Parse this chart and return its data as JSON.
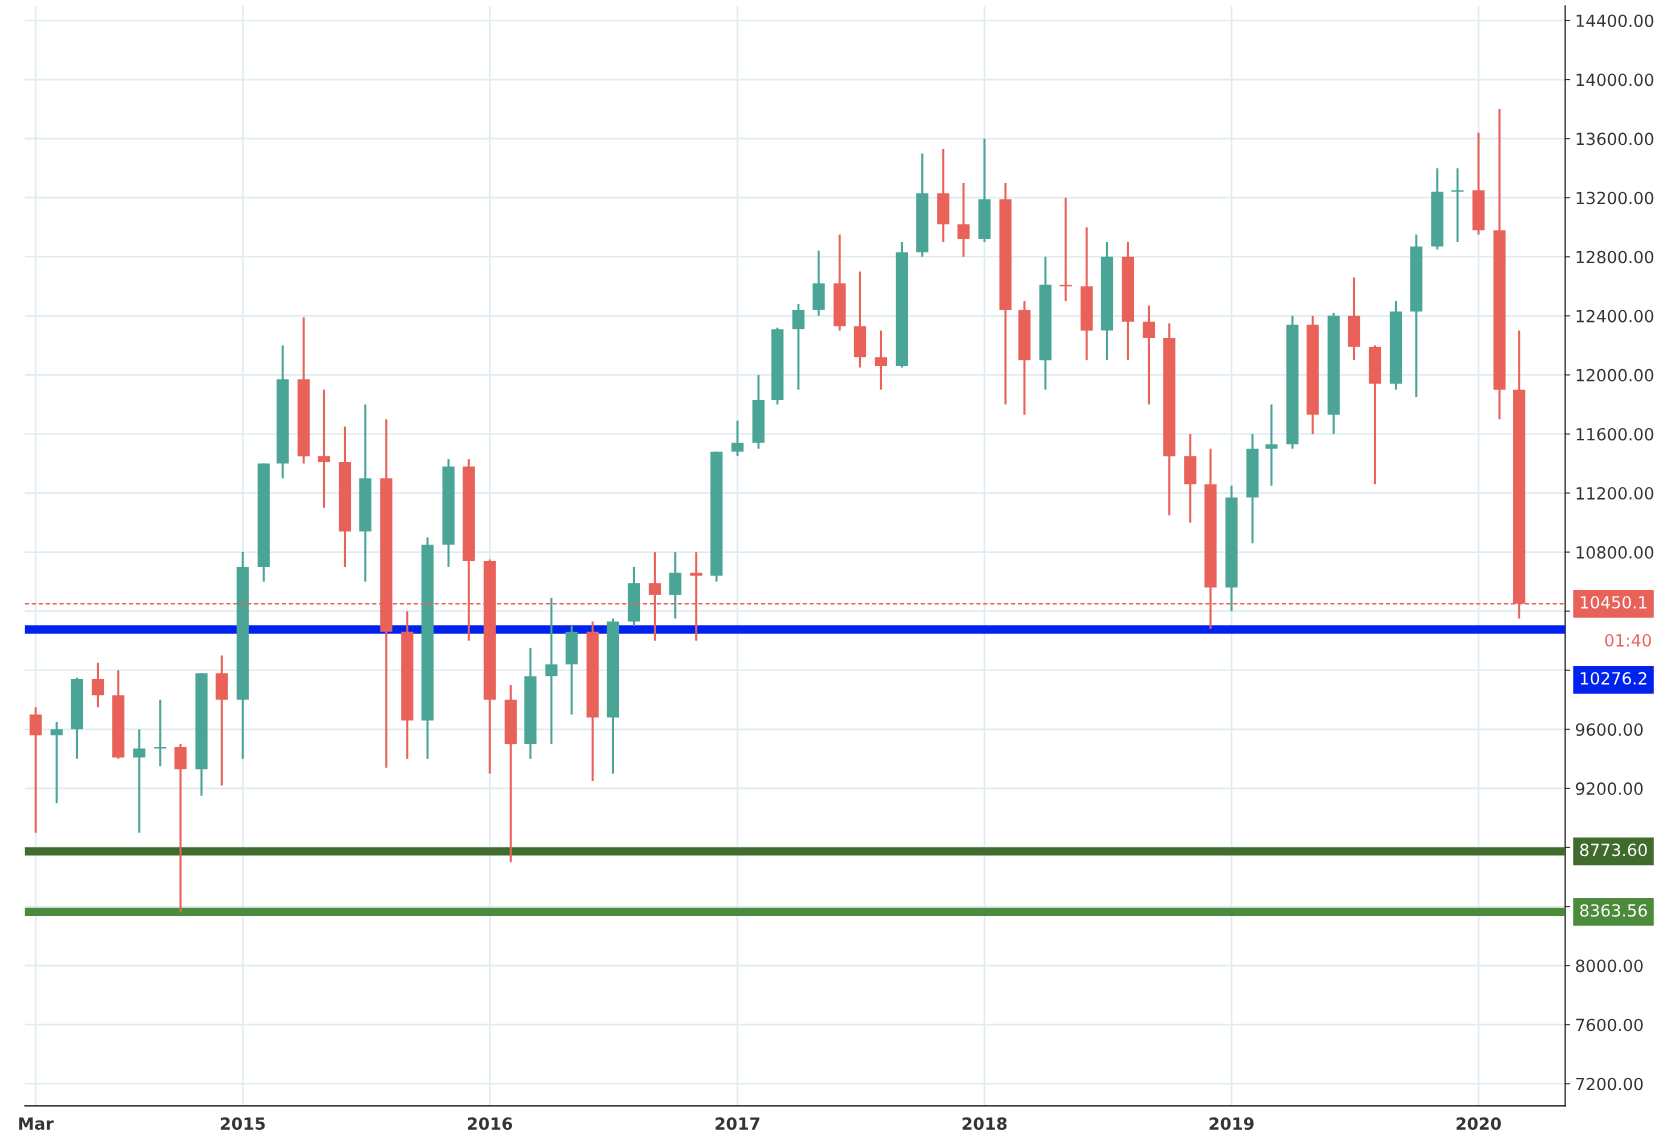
{
  "chart_data": {
    "type": "candlestick",
    "x": [
      "2014-03",
      "2014-04",
      "2014-05",
      "2014-06",
      "2014-07",
      "2014-08",
      "2014-09",
      "2014-10",
      "2014-11",
      "2014-12",
      "2015-01",
      "2015-02",
      "2015-03",
      "2015-04",
      "2015-05",
      "2015-06",
      "2015-07",
      "2015-08",
      "2015-09",
      "2015-10",
      "2015-11",
      "2015-12",
      "2016-01",
      "2016-02",
      "2016-03",
      "2016-04",
      "2016-05",
      "2016-06",
      "2016-07",
      "2016-08",
      "2016-09",
      "2016-10",
      "2016-11",
      "2016-12",
      "2017-01",
      "2017-02",
      "2017-03",
      "2017-04",
      "2017-05",
      "2017-06",
      "2017-07",
      "2017-08",
      "2017-09",
      "2017-10",
      "2017-11",
      "2017-12",
      "2018-01",
      "2018-02",
      "2018-03",
      "2018-04",
      "2018-05",
      "2018-06",
      "2018-07",
      "2018-08",
      "2018-09",
      "2018-10",
      "2018-11",
      "2018-12",
      "2019-01",
      "2019-02",
      "2019-03",
      "2019-04",
      "2019-05",
      "2019-06",
      "2019-07",
      "2019-08",
      "2019-09",
      "2019-10",
      "2019-11",
      "2019-12",
      "2020-01",
      "2020-02",
      "2020-03"
    ],
    "ohlc": [
      [
        9700,
        9750,
        8900,
        9560
      ],
      [
        9560,
        9650,
        9100,
        9600
      ],
      [
        9600,
        9950,
        9400,
        9940
      ],
      [
        9940,
        10050,
        9750,
        9830
      ],
      [
        9830,
        10000,
        9400,
        9410
      ],
      [
        9410,
        9600,
        8900,
        9470
      ],
      [
        9470,
        9800,
        9350,
        9480
      ],
      [
        9480,
        9500,
        8360,
        9330
      ],
      [
        9330,
        9980,
        9150,
        9980
      ],
      [
        9980,
        10100,
        9220,
        9800
      ],
      [
        9800,
        10800,
        9400,
        10700
      ],
      [
        10700,
        11400,
        10600,
        11400
      ],
      [
        11400,
        12200,
        11300,
        11970
      ],
      [
        11970,
        12390,
        11400,
        11450
      ],
      [
        11450,
        11900,
        11100,
        11410
      ],
      [
        11410,
        11650,
        10700,
        10940
      ],
      [
        10940,
        11800,
        10600,
        11300
      ],
      [
        11300,
        11700,
        9340,
        10260
      ],
      [
        10260,
        10400,
        9400,
        9660
      ],
      [
        9660,
        10900,
        9400,
        10850
      ],
      [
        10850,
        11430,
        10700,
        11380
      ],
      [
        11380,
        11430,
        10200,
        10740
      ],
      [
        10740,
        10750,
        9300,
        9800
      ],
      [
        9800,
        9900,
        8700,
        9500
      ],
      [
        9500,
        10150,
        9400,
        9960
      ],
      [
        9960,
        10490,
        9500,
        10040
      ],
      [
        10040,
        10300,
        9700,
        10260
      ],
      [
        10260,
        10330,
        9250,
        9680
      ],
      [
        9680,
        10350,
        9300,
        10330
      ],
      [
        10330,
        10700,
        10300,
        10590
      ],
      [
        10590,
        10800,
        10200,
        10510
      ],
      [
        10510,
        10800,
        10350,
        10660
      ],
      [
        10660,
        10800,
        10200,
        10640
      ],
      [
        10640,
        11480,
        10600,
        11480
      ],
      [
        11480,
        11690,
        11450,
        11540
      ],
      [
        11540,
        12000,
        11500,
        11830
      ],
      [
        11830,
        12320,
        11800,
        12310
      ],
      [
        12310,
        12480,
        11900,
        12440
      ],
      [
        12440,
        12840,
        12400,
        12620
      ],
      [
        12620,
        12950,
        12300,
        12330
      ],
      [
        12330,
        12700,
        12050,
        12120
      ],
      [
        12120,
        12300,
        11900,
        12060
      ],
      [
        12060,
        12900,
        12050,
        12830
      ],
      [
        12830,
        13500,
        12800,
        13230
      ],
      [
        13230,
        13530,
        12900,
        13020
      ],
      [
        13020,
        13300,
        12800,
        12920
      ],
      [
        12920,
        13600,
        12900,
        13190
      ],
      [
        13190,
        13300,
        11800,
        12440
      ],
      [
        12440,
        12500,
        11730,
        12100
      ],
      [
        12100,
        12800,
        11900,
        12610
      ],
      [
        12610,
        13200,
        12500,
        12600
      ],
      [
        12600,
        13000,
        12100,
        12300
      ],
      [
        12300,
        12900,
        12100,
        12800
      ],
      [
        12800,
        12900,
        12100,
        12360
      ],
      [
        12360,
        12470,
        11800,
        12250
      ],
      [
        12250,
        12350,
        11050,
        11450
      ],
      [
        11450,
        11600,
        11000,
        11260
      ],
      [
        11260,
        11500,
        10280,
        10560
      ],
      [
        10560,
        11250,
        10400,
        11170
      ],
      [
        11170,
        11600,
        10860,
        11500
      ],
      [
        11500,
        11800,
        11250,
        11530
      ],
      [
        11530,
        12400,
        11500,
        12340
      ],
      [
        12340,
        12400,
        11600,
        11730
      ],
      [
        11730,
        12420,
        11600,
        12400
      ],
      [
        12400,
        12660,
        12100,
        12190
      ],
      [
        12190,
        12200,
        11260,
        11940
      ],
      [
        11940,
        12500,
        11900,
        12430
      ],
      [
        12430,
        12950,
        11850,
        12870
      ],
      [
        12870,
        13400,
        12850,
        13240
      ],
      [
        13240,
        13400,
        12900,
        13250
      ],
      [
        13250,
        13640,
        12950,
        12980
      ],
      [
        12980,
        13800,
        11700,
        11900
      ],
      [
        11900,
        12300,
        10350,
        10450
      ]
    ],
    "colors": [
      "#e8625a",
      "#4aa597",
      "#4aa597",
      "#e8625a",
      "#e8625a",
      "#4aa597",
      "#4aa597",
      "#e8625a",
      "#4aa597",
      "#e8625a",
      "#4aa597",
      "#4aa597",
      "#4aa597",
      "#e8625a",
      "#e8625a",
      "#e8625a",
      "#4aa597",
      "#e8625a",
      "#e8625a",
      "#4aa597",
      "#4aa597",
      "#e8625a",
      "#e8625a",
      "#e8625a",
      "#4aa597",
      "#4aa597",
      "#4aa597",
      "#e8625a",
      "#4aa597",
      "#4aa597",
      "#e8625a",
      "#4aa597",
      "#e8625a",
      "#4aa597",
      "#4aa597",
      "#4aa597",
      "#4aa597",
      "#4aa597",
      "#4aa597",
      "#e8625a",
      "#e8625a",
      "#e8625a",
      "#4aa597",
      "#4aa597",
      "#e8625a",
      "#e8625a",
      "#4aa597",
      "#e8625a",
      "#e8625a",
      "#4aa597",
      "#e8625a",
      "#e8625a",
      "#4aa597",
      "#e8625a",
      "#e8625a",
      "#e8625a",
      "#e8625a",
      "#e8625a",
      "#4aa597",
      "#4aa597",
      "#4aa597",
      "#4aa597",
      "#e8625a",
      "#4aa597",
      "#e8625a",
      "#e8625a",
      "#4aa597",
      "#4aa597",
      "#4aa597",
      "#4aa597",
      "#e8625a",
      "#e8625a",
      "#e8625a"
    ],
    "xlim": [
      "2014-02-13",
      "2020-05-08"
    ],
    "xticks": [
      {
        "value": "2014-03-01",
        "label": "Mar"
      },
      {
        "value": "2015-01-01",
        "label": "2015"
      },
      {
        "value": "2016-01-01",
        "label": "2016"
      },
      {
        "value": "2017-01-01",
        "label": "2017"
      },
      {
        "value": "2018-01-01",
        "label": "2018"
      },
      {
        "value": "2019-01-01",
        "label": "2019"
      },
      {
        "value": "2020-01-01",
        "label": "2020"
      }
    ],
    "ylim": [
      7050,
      14500
    ],
    "yticks": [
      {
        "value": 7200,
        "label": "7200.00"
      },
      {
        "value": 7600,
        "label": "7600.00"
      },
      {
        "value": 8000,
        "label": "8000.00"
      },
      {
        "value": 8400,
        "label": null
      },
      {
        "value": 8800,
        "label": null
      },
      {
        "value": 9200,
        "label": "9200.00"
      },
      {
        "value": 9600,
        "label": "9600.00"
      },
      {
        "value": 10000,
        "label": null
      },
      {
        "value": 10400,
        "label": null
      },
      {
        "value": 10800,
        "label": "10800.00"
      },
      {
        "value": 11200,
        "label": "11200.00"
      },
      {
        "value": 11600,
        "label": "11600.00"
      },
      {
        "value": 12000,
        "label": "12000.00"
      },
      {
        "value": 12400,
        "label": "12400.00"
      },
      {
        "value": 12800,
        "label": "12800.00"
      },
      {
        "value": 13200,
        "label": "13200.00"
      },
      {
        "value": 13600,
        "label": "13600.00"
      },
      {
        "value": 14000,
        "label": "14000.00"
      },
      {
        "value": 14400,
        "label": "14400.00"
      }
    ],
    "ref_lines": [
      {
        "axis": "y",
        "value": 10450.1,
        "label": "10450.1",
        "color": "#e8625a",
        "line_style": "dashed"
      },
      {
        "axis": "y",
        "value": 10276.2,
        "label": "10276.2",
        "color": "#0022ee",
        "line_style": "solid"
      },
      {
        "axis": "y",
        "value": 8773.6,
        "label": "8773.60",
        "color": "#3f6b2c",
        "line_style": "solid"
      },
      {
        "axis": "y",
        "value": 8363.56,
        "label": "8363.56",
        "color": "#4c8a3c",
        "line_style": "solid"
      }
    ],
    "annotations": [
      "01:40"
    ],
    "grid": true,
    "legend": false
  }
}
